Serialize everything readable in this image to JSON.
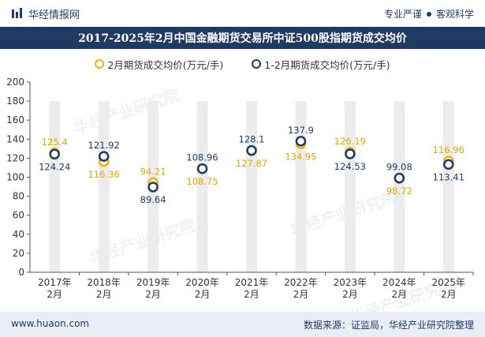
{
  "header": {
    "brand_name": "华经情报网",
    "tagline_left": "专业严谨",
    "tagline_right": "客观科学"
  },
  "colors": {
    "primary": "#1f3b64",
    "accent": "#f0b400",
    "bar_bg": "#ececec"
  },
  "watermark_text": "华经产业研究院",
  "chart_data": {
    "type": "scatter",
    "title": "2017-2025年2月中国金融期货交易所中证500股指期货成交均价",
    "categories": [
      [
        "2017年",
        "2月"
      ],
      [
        "2018年",
        "2月"
      ],
      [
        "2019年",
        "2月"
      ],
      [
        "2020年",
        "2月"
      ],
      [
        "2021年",
        "2月"
      ],
      [
        "2022年",
        "2月"
      ],
      [
        "2023年",
        "2月"
      ],
      [
        "2024年",
        "2月"
      ],
      [
        "2025年",
        "2月"
      ]
    ],
    "series": [
      {
        "name": "2月期货成交均价(万元/手)",
        "values": [
          125.4,
          116.36,
          94.21,
          108.75,
          127.87,
          134.95,
          126.19,
          98.72,
          116.96
        ],
        "labels": [
          "125.4",
          "116.36",
          "94.21",
          "108.75",
          "127.87",
          "134.95",
          "126.19",
          "98.72",
          "116.96"
        ],
        "color": "#f0b400"
      },
      {
        "name": "1-2月期货成交均价(万元/手)",
        "values": [
          124.24,
          121.92,
          89.64,
          108.96,
          128.1,
          137.9,
          124.53,
          99.08,
          113.41
        ],
        "labels": [
          "124.24",
          "121.92",
          "89.64",
          "108.96",
          "128.1",
          "137.9",
          "124.53",
          "99.08",
          "113.41"
        ],
        "color": "#1f3b64"
      }
    ],
    "ylim": [
      0,
      200
    ],
    "yticks": [
      "0",
      "20",
      "40",
      "60",
      "80",
      "100",
      "120",
      "140",
      "160",
      "180",
      "200"
    ],
    "grid": false,
    "legend_position": "top-center"
  },
  "footer": {
    "website": "www.huaon.com",
    "source": "数据来源：证监局，华经产业研究院整理"
  }
}
